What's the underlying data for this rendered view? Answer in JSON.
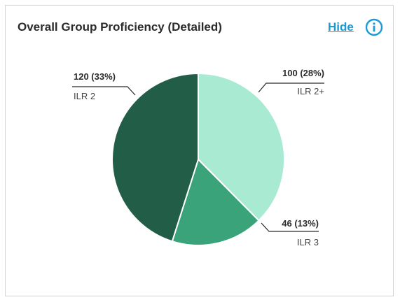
{
  "header": {
    "title": "Overall Group Proficiency (Detailed)",
    "hide_label": "Hide",
    "info_icon": "info-circle-icon"
  },
  "colors": {
    "accent": "#1a9ad6",
    "slice_ilr2plus": "#a8ead2",
    "slice_ilr3": "#3aa37a",
    "slice_ilr2": "#225e47"
  },
  "chart_data": {
    "type": "pie",
    "slices": [
      {
        "label": "ILR 2+",
        "value": 100,
        "value_text": "100 (28%)",
        "color": "#a8ead2"
      },
      {
        "label": "ILR 3",
        "value": 46,
        "value_text": "46 (13%)",
        "color": "#3aa37a"
      },
      {
        "label": "ILR 2",
        "value": 120,
        "value_text": "120 (33%)",
        "color": "#225e47"
      }
    ]
  }
}
